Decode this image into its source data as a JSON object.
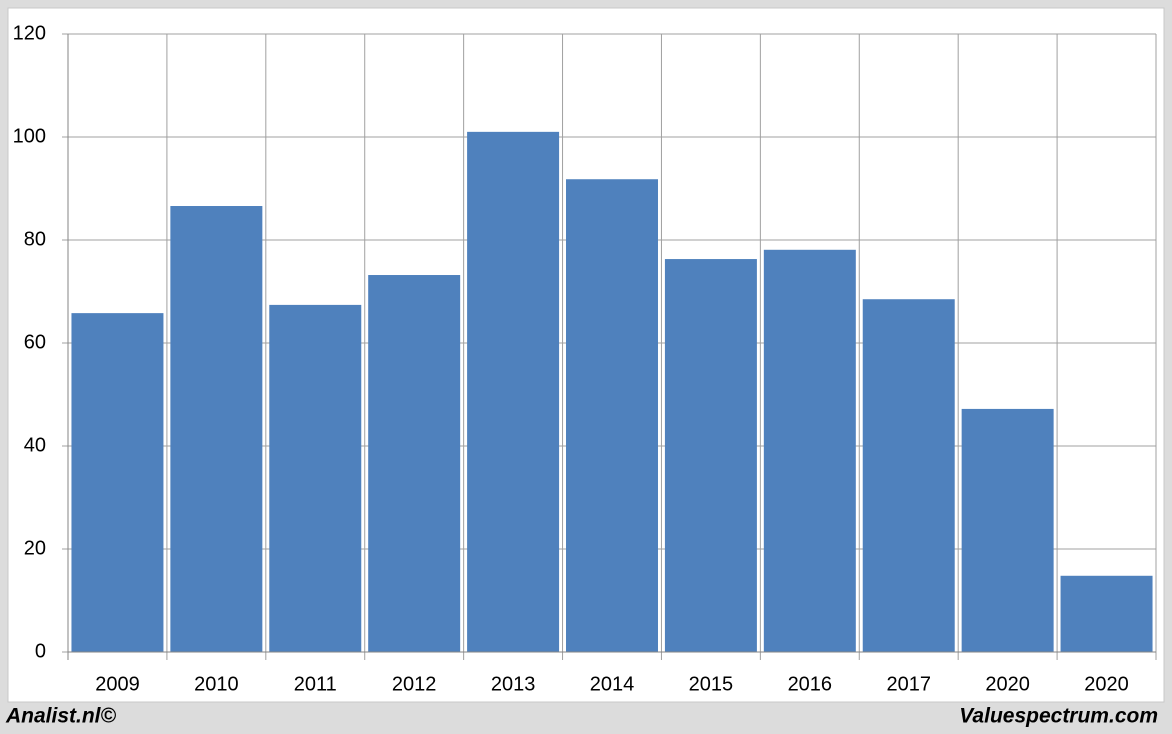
{
  "chart_data": {
    "type": "bar",
    "categories": [
      "2009",
      "2010",
      "2011",
      "2012",
      "2013",
      "2014",
      "2015",
      "2016",
      "2017",
      "2020",
      "2020"
    ],
    "values": [
      65.8,
      86.6,
      67.4,
      73.2,
      101,
      91.8,
      76.3,
      78.1,
      68.5,
      47.2,
      14.8
    ],
    "color": "#4f81bd",
    "ylim": [
      0,
      120
    ],
    "yticks": [
      0,
      20,
      40,
      60,
      80,
      100,
      120
    ],
    "grid": true,
    "credits": [
      "Analist.nl©",
      "Valuespectrum.com"
    ]
  }
}
